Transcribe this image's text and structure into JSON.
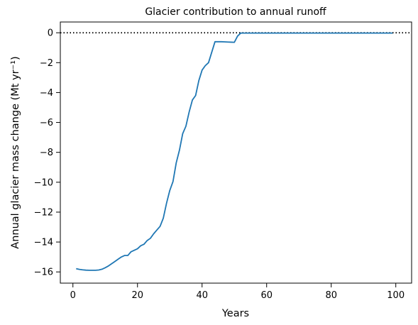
{
  "chart_data": {
    "type": "line",
    "title": "Glacier contribution to annual runoff",
    "xlabel": "Years",
    "ylabel": "Annual glacier mass change (Mt yr⁻¹)",
    "xlim": [
      -3.9,
      104.9
    ],
    "ylim": [
      -16.75,
      0.72
    ],
    "xticks": [
      0,
      20,
      40,
      60,
      80,
      100
    ],
    "yticks": [
      0,
      -2,
      -4,
      -6,
      -8,
      -10,
      -12,
      -14,
      -16
    ],
    "xtick_labels": [
      "0",
      "20",
      "40",
      "60",
      "80",
      "100"
    ],
    "ytick_labels": [
      "0",
      "−2",
      "−4",
      "−6",
      "−8",
      "−10",
      "−12",
      "−14",
      "−16"
    ],
    "grid": false,
    "reference_line": {
      "y": 0,
      "style": "dotted",
      "color": "#000000"
    },
    "series": [
      {
        "color": "#1f77b4",
        "x": [
          1,
          2,
          3,
          4,
          5,
          6,
          7,
          8,
          9,
          10,
          11,
          12,
          13,
          14,
          15,
          16,
          17,
          18,
          19,
          20,
          21,
          22,
          23,
          24,
          25,
          26,
          27,
          28,
          29,
          30,
          31,
          32,
          33,
          34,
          35,
          36,
          37,
          38,
          39,
          40,
          41,
          42,
          43,
          44,
          45,
          46,
          47,
          48,
          49,
          50,
          51,
          52,
          53,
          54,
          55,
          56,
          57,
          58,
          59,
          60,
          61,
          62,
          63,
          64,
          65,
          66,
          67,
          68,
          69,
          70,
          71,
          72,
          73,
          74,
          75,
          76,
          77,
          78,
          79,
          80,
          81,
          82,
          83,
          84,
          85,
          86,
          87,
          88,
          89,
          90,
          91,
          92,
          93,
          94,
          95,
          96,
          97,
          98,
          99
        ],
        "y": [
          -15.78,
          -15.83,
          -15.86,
          -15.88,
          -15.89,
          -15.89,
          -15.89,
          -15.87,
          -15.82,
          -15.72,
          -15.6,
          -15.45,
          -15.3,
          -15.15,
          -15.0,
          -14.9,
          -14.9,
          -14.65,
          -14.55,
          -14.45,
          -14.25,
          -14.15,
          -13.9,
          -13.75,
          -13.45,
          -13.2,
          -12.95,
          -12.4,
          -11.4,
          -10.55,
          -9.95,
          -8.7,
          -7.85,
          -6.75,
          -6.25,
          -5.3,
          -4.5,
          -4.2,
          -3.2,
          -2.5,
          -2.2,
          -2.0,
          -1.3,
          -0.6,
          -0.6,
          -0.6,
          -0.61,
          -0.62,
          -0.63,
          -0.64,
          -0.22,
          -0.02,
          -0.02,
          -0.02,
          -0.02,
          -0.02,
          -0.02,
          -0.02,
          -0.02,
          -0.02,
          -0.02,
          -0.02,
          -0.02,
          -0.02,
          -0.02,
          -0.02,
          -0.02,
          -0.02,
          -0.02,
          -0.02,
          -0.02,
          -0.02,
          -0.02,
          -0.02,
          -0.02,
          -0.02,
          -0.02,
          -0.02,
          -0.02,
          -0.02,
          -0.02,
          -0.02,
          -0.02,
          -0.02,
          -0.02,
          -0.02,
          -0.02,
          -0.02,
          -0.02,
          -0.02,
          -0.02,
          -0.02,
          -0.02,
          -0.02,
          -0.02,
          -0.02,
          -0.02,
          -0.02,
          -0.02
        ]
      }
    ]
  }
}
